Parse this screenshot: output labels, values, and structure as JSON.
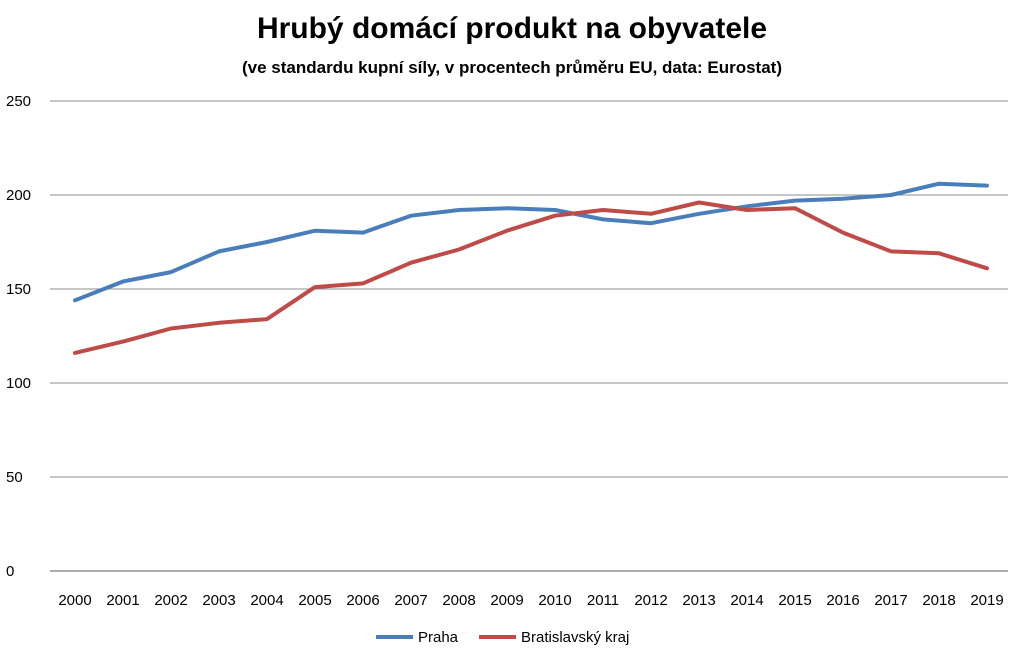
{
  "chart_data": {
    "type": "line",
    "title": "Hrubý domácí produkt na obyvatele",
    "subtitle": "(ve standardu kupní síly, v procentech průměru EU, data: Eurostat)",
    "xlabel": "",
    "ylabel": "",
    "x": [
      "2000",
      "2001",
      "2002",
      "2003",
      "2004",
      "2005",
      "2006",
      "2007",
      "2008",
      "2009",
      "2010",
      "2011",
      "2012",
      "2013",
      "2014",
      "2015",
      "2016",
      "2017",
      "2018",
      "2019"
    ],
    "ylim": [
      0,
      250
    ],
    "yticks": [
      0,
      50,
      100,
      150,
      200,
      250
    ],
    "grid": true,
    "legend_position": "bottom",
    "series": [
      {
        "name": "Praha",
        "color": "#4a7ebb",
        "values": [
          144,
          154,
          159,
          170,
          175,
          181,
          180,
          189,
          192,
          193,
          192,
          187,
          185,
          190,
          194,
          197,
          198,
          200,
          206,
          205
        ]
      },
      {
        "name": "Bratislavský kraj",
        "color": "#be4b48",
        "values": [
          116,
          122,
          129,
          132,
          134,
          151,
          153,
          164,
          171,
          181,
          189,
          192,
          190,
          196,
          192,
          193,
          180,
          170,
          169,
          161
        ]
      }
    ]
  }
}
